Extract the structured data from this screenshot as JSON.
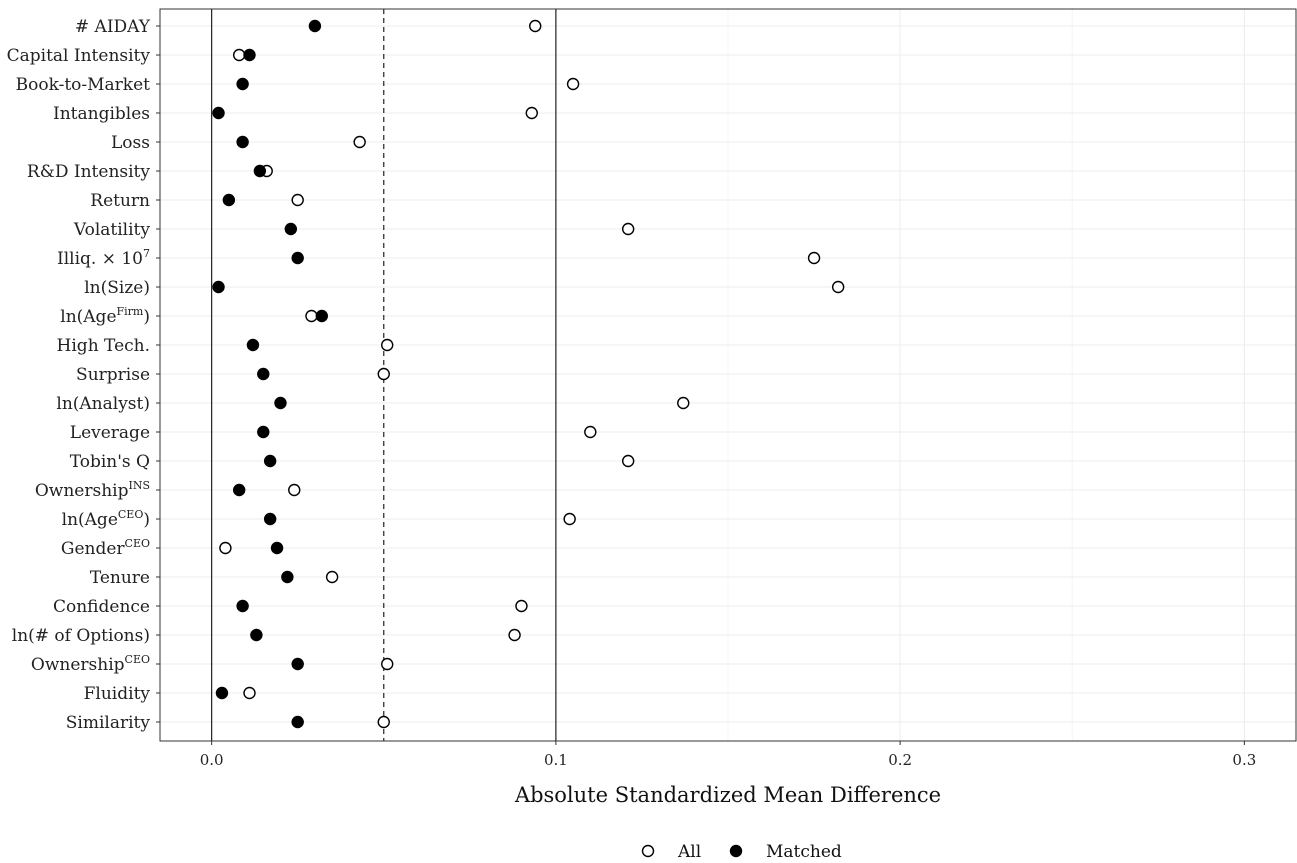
{
  "chart_data": {
    "type": "scatter",
    "title": "",
    "xlabel": "Absolute Standardized Mean Difference",
    "ylabel": "",
    "xlim": [
      -0.015,
      0.315
    ],
    "xticks": [
      "0.0",
      "0.1",
      "0.2",
      "0.3"
    ],
    "xtick_values": [
      0.0,
      0.1,
      0.2,
      0.3
    ],
    "reference_lines": [
      {
        "x": 0.0,
        "style": "solid"
      },
      {
        "x": 0.05,
        "style": "dashed"
      },
      {
        "x": 0.1,
        "style": "solid"
      }
    ],
    "grid": true,
    "legend": {
      "position": "bottom",
      "entries": [
        {
          "label": "All",
          "marker": "open-circle"
        },
        {
          "label": "Matched",
          "marker": "filled-circle"
        }
      ]
    },
    "categories": [
      {
        "base": "# AIDAY",
        "sup": ""
      },
      {
        "base": "Capital Intensity",
        "sup": ""
      },
      {
        "base": "Book-to-Market",
        "sup": ""
      },
      {
        "base": "Intangibles",
        "sup": ""
      },
      {
        "base": "Loss",
        "sup": ""
      },
      {
        "base": "R&D Intensity",
        "sup": ""
      },
      {
        "base": "Return",
        "sup": ""
      },
      {
        "base": "Volatility",
        "sup": ""
      },
      {
        "base": "Illiq. × 10",
        "sup": "7",
        "suffix": ""
      },
      {
        "base": "ln(Size)",
        "sup": ""
      },
      {
        "base": "ln(Age",
        "sup": "Firm",
        "suffix": ")"
      },
      {
        "base": "High Tech.",
        "sup": ""
      },
      {
        "base": "Surprise",
        "sup": ""
      },
      {
        "base": "ln(Analyst)",
        "sup": ""
      },
      {
        "base": "Leverage",
        "sup": ""
      },
      {
        "base": "Tobin's Q",
        "sup": ""
      },
      {
        "base": "Ownership",
        "sup": "INS",
        "suffix": ""
      },
      {
        "base": "ln(Age",
        "sup": "CEO",
        "suffix": ")"
      },
      {
        "base": "Gender",
        "sup": "CEO",
        "suffix": ""
      },
      {
        "base": "Tenure",
        "sup": ""
      },
      {
        "base": "Confidence",
        "sup": ""
      },
      {
        "base": "ln(# of Options)",
        "sup": ""
      },
      {
        "base": "Ownership",
        "sup": "CEO",
        "suffix": ""
      },
      {
        "base": "Fluidity",
        "sup": ""
      },
      {
        "base": "Similarity",
        "sup": ""
      }
    ],
    "series": [
      {
        "name": "All",
        "marker": "open-circle",
        "values": [
          0.094,
          0.008,
          0.105,
          0.093,
          0.043,
          0.016,
          0.025,
          0.121,
          0.175,
          0.182,
          0.029,
          0.051,
          0.05,
          0.137,
          0.11,
          0.121,
          0.024,
          0.104,
          0.004,
          0.035,
          0.09,
          0.088,
          0.051,
          0.011,
          0.05
        ]
      },
      {
        "name": "Matched",
        "marker": "filled-circle",
        "values": [
          0.03,
          0.011,
          0.009,
          0.002,
          0.009,
          0.014,
          0.005,
          0.023,
          0.025,
          0.002,
          0.032,
          0.012,
          0.015,
          0.02,
          0.015,
          0.017,
          0.008,
          0.017,
          0.019,
          0.022,
          0.009,
          0.013,
          0.025,
          0.003,
          0.025
        ]
      }
    ]
  }
}
